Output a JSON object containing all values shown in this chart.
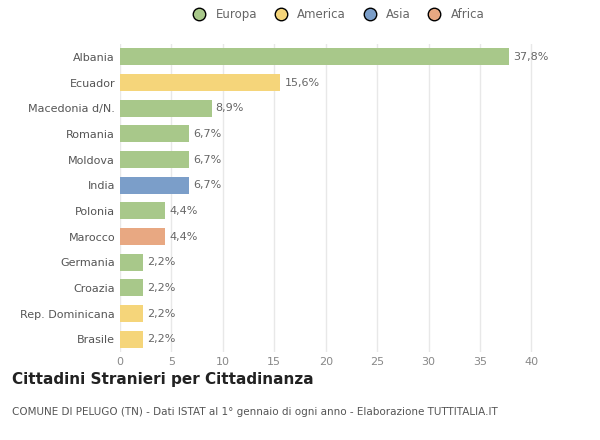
{
  "categories": [
    "Brasile",
    "Rep. Dominicana",
    "Croazia",
    "Germania",
    "Marocco",
    "Polonia",
    "India",
    "Moldova",
    "Romania",
    "Macedonia d/N.",
    "Ecuador",
    "Albania"
  ],
  "values": [
    2.2,
    2.2,
    2.2,
    2.2,
    4.4,
    4.4,
    6.7,
    6.7,
    6.7,
    8.9,
    15.6,
    37.8
  ],
  "labels": [
    "2,2%",
    "2,2%",
    "2,2%",
    "2,2%",
    "4,4%",
    "4,4%",
    "6,7%",
    "6,7%",
    "6,7%",
    "8,9%",
    "15,6%",
    "37,8%"
  ],
  "bar_colors": [
    "#f5d57a",
    "#f5d57a",
    "#a8c88a",
    "#a8c88a",
    "#e8a882",
    "#a8c88a",
    "#7b9ec9",
    "#a8c88a",
    "#a8c88a",
    "#a8c88a",
    "#f5d57a",
    "#a8c88a"
  ],
  "legend_labels": [
    "Europa",
    "America",
    "Asia",
    "Africa"
  ],
  "legend_colors": [
    "#a8c88a",
    "#f5d57a",
    "#7b9ec9",
    "#e8a882"
  ],
  "title": "Cittadini Stranieri per Cittadinanza",
  "subtitle": "COMUNE DI PELUGO (TN) - Dati ISTAT al 1° gennaio di ogni anno - Elaborazione TUTTITALIA.IT",
  "xlim": [
    0,
    42
  ],
  "xticks": [
    0,
    5,
    10,
    15,
    20,
    25,
    30,
    35,
    40
  ],
  "bg_color": "#ffffff",
  "grid_color": "#e8e8e8",
  "title_fontsize": 11,
  "subtitle_fontsize": 7.5,
  "tick_fontsize": 8,
  "label_fontsize": 8,
  "legend_fontsize": 8.5
}
